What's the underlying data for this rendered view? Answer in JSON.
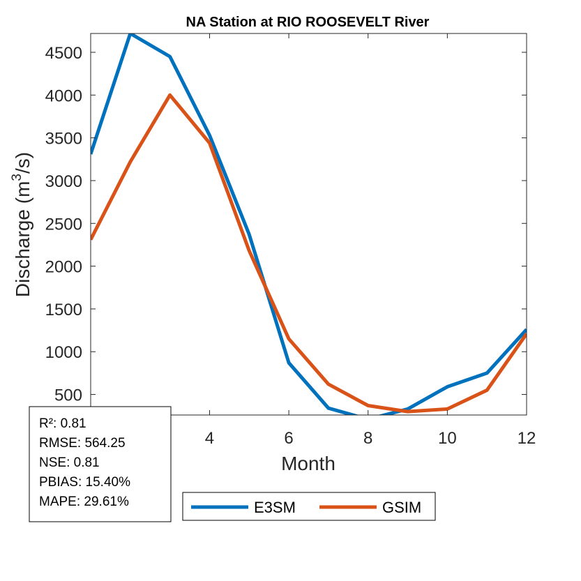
{
  "chart_data": {
    "type": "line",
    "title": "NA  Station at  RIO ROOSEVELT  River",
    "xlabel": "Month",
    "ylabel": "Discharge (m³/s)",
    "ylabel_parts": {
      "before": "Discharge (m",
      "sup": "3",
      "after": "/s)"
    },
    "xlim": [
      1,
      12
    ],
    "ylim": [
      260,
      4720
    ],
    "x_ticks": [
      4,
      6,
      8,
      10,
      12
    ],
    "y_ticks": [
      500,
      1000,
      1500,
      2000,
      2500,
      3000,
      3500,
      4000,
      4500
    ],
    "grid": false,
    "legend_position": "bottom-center",
    "x": [
      1,
      2,
      3,
      4,
      5,
      6,
      7,
      8,
      9,
      10,
      11,
      12
    ],
    "series": [
      {
        "name": "E3SM",
        "color": "#0072BD",
        "values": [
          3310,
          4720,
          4450,
          3530,
          2370,
          870,
          340,
          210,
          330,
          590,
          750,
          1260
        ]
      },
      {
        "name": "GSIM",
        "color": "#D95319",
        "values": [
          2310,
          3220,
          4000,
          3440,
          2180,
          1150,
          620,
          370,
          300,
          330,
          550,
          1210
        ]
      }
    ],
    "stats": [
      "R²: 0.81",
      "RMSE: 564.25",
      "NSE: 0.81",
      "PBIAS: 15.40%",
      "MAPE: 29.61%"
    ]
  }
}
